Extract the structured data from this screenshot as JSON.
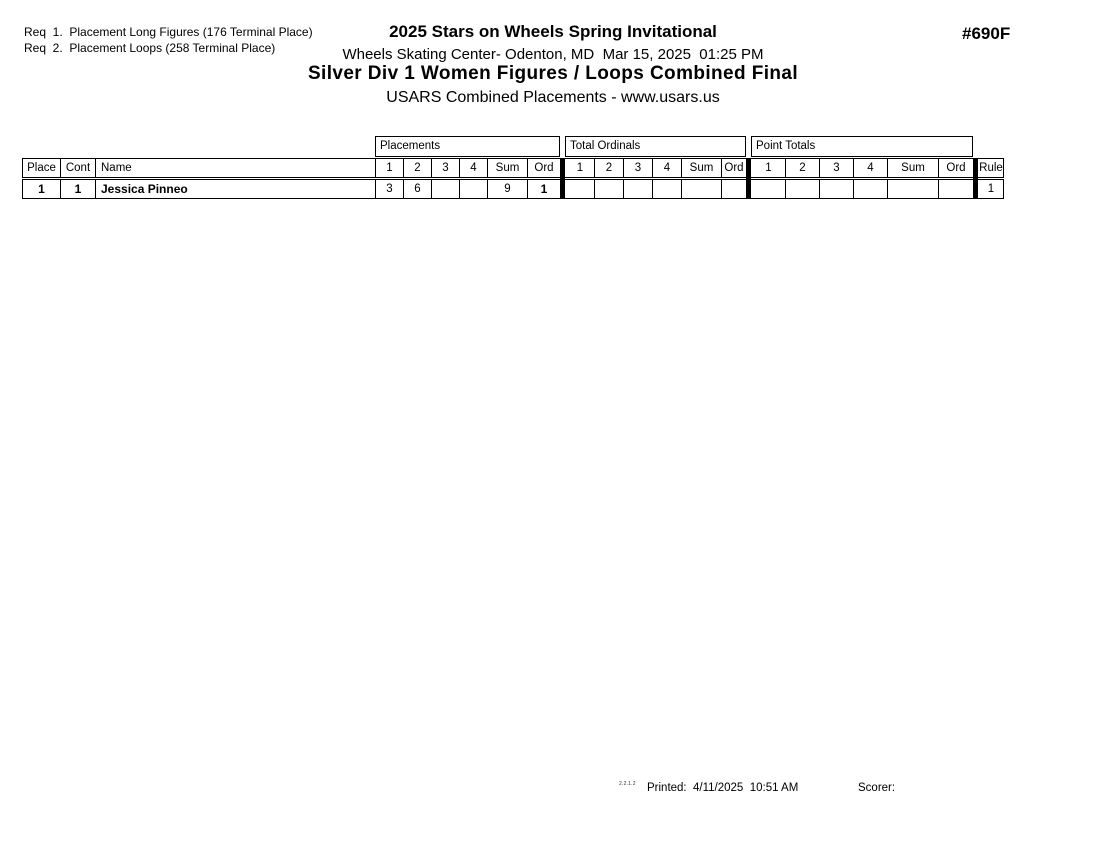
{
  "page": {
    "requirements": [
      "Req  1.  Placement Long Figures (176 Terminal Place)",
      "Req  2.  Placement Loops (258 Terminal Place)"
    ],
    "title": "2025 Stars on Wheels Spring Invitational",
    "venue_line": "Wheels Skating Center- Odenton, MD  Mar 15, 2025  01:25 PM",
    "event_title": "Silver Div 1 Women Figures / Loops Combined Final",
    "subtitle": "USARS Combined Placements - www.usars.us",
    "event_number": "#690F"
  },
  "table": {
    "group_headers": [
      "Placements",
      "Total Ordinals",
      "Point Totals"
    ],
    "columns": [
      "Place",
      "Cont",
      "Name",
      "1",
      "2",
      "3",
      "4",
      "Sum",
      "Ord",
      "1",
      "2",
      "3",
      "4",
      "Sum",
      "Ord",
      "1",
      "2",
      "3",
      "4",
      "Sum",
      "Ord",
      "Rule"
    ],
    "rows": [
      {
        "place": "1",
        "cont": "1",
        "name": "Jessica Pinneo",
        "placements": [
          "3",
          "6",
          "",
          "",
          "9",
          "1"
        ],
        "total_ordinals": [
          "",
          "",
          "",
          "",
          "",
          ""
        ],
        "point_totals": [
          "",
          "",
          "",
          "",
          "",
          ""
        ],
        "rule": "1"
      }
    ]
  },
  "footer": {
    "version": "2.2.1.2",
    "printed_label": "Printed:  4/11/2025  10:51 AM",
    "scorer_label": "Scorer:"
  },
  "colors": {
    "text": "#000000",
    "background": "#ffffff"
  }
}
